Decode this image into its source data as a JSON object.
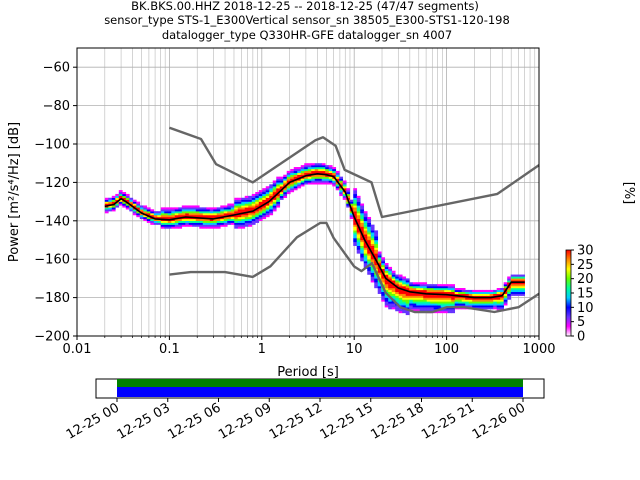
{
  "header": {
    "line1": "BK.BKS.00.HHZ   2018-12-25 -- 2018-12-25  (47/47 segments)",
    "line2": "sensor_type STS-1_E300Vertical sensor_sn 38505_E300-STS1-120-198",
    "line3": "datalogger_type Q330HR-GFE datalogger_sn 4007"
  },
  "chart_data": [
    {
      "type": "heatmap",
      "title": "",
      "xlabel": "Period [s]",
      "ylabel": "Power [m²/s⁴/Hz] [dB]",
      "xscale": "log",
      "xlim": [
        0.01,
        1000
      ],
      "ylim": [
        -200,
        -50
      ],
      "x_ticks": [
        0.01,
        0.1,
        1,
        10,
        100,
        1000
      ],
      "x_tick_labels": [
        "0.01",
        "0.1",
        "1",
        "10",
        "100",
        "1000"
      ],
      "y_ticks": [
        -200,
        -180,
        -160,
        -140,
        -120,
        -100,
        -80,
        -60
      ],
      "y_tick_labels": [
        "−200",
        "−180",
        "−160",
        "−140",
        "−120",
        "−100",
        "−80",
        "−60"
      ],
      "grid": true,
      "colorbar": {
        "label": "[%]",
        "min": 0,
        "max": 30,
        "ticks": [
          0,
          5,
          10,
          15,
          20,
          25,
          30
        ],
        "tick_labels": [
          "0",
          "5",
          "10",
          "15",
          "20",
          "25",
          "30"
        ],
        "colors": [
          "#ffffff",
          "#ff00ff",
          "#6633ff",
          "#0000ff",
          "#00ccff",
          "#00ff99",
          "#66ff00",
          "#ffff00",
          "#ff8800",
          "#ff0000"
        ]
      },
      "series": [
        {
          "role": "noise-model-high",
          "color": "#666666",
          "x": [
            0.1,
            0.22,
            0.32,
            0.8,
            3.8,
            4.6,
            6.3,
            7.9,
            15.4,
            20,
            354.8,
            1000
          ],
          "y": [
            -91.5,
            -97.4,
            -110.5,
            -120,
            -98,
            -96.5,
            -101,
            -113.5,
            -120,
            -138,
            -126,
            -111
          ]
        },
        {
          "role": "noise-model-low",
          "color": "#666666",
          "x": [
            0.1,
            0.17,
            0.4,
            0.8,
            1.24,
            2.4,
            4.3,
            5,
            6,
            10,
            12,
            15.6,
            21.9,
            31.6,
            45,
            70,
            101,
            154,
            328,
            600,
            1000
          ],
          "y": [
            -168,
            -166.7,
            -166.7,
            -169.2,
            -163.7,
            -148.6,
            -141.1,
            -141.1,
            -149,
            -163.8,
            -166.2,
            -162.1,
            -177.5,
            -185,
            -187.5,
            -187.5,
            -185,
            -185,
            -187.5,
            -185,
            -178
          ]
        },
        {
          "role": "mode",
          "color": "#000000",
          "x": [
            0.02,
            0.025,
            0.03,
            0.035,
            0.05,
            0.07,
            0.1,
            0.15,
            0.3,
            0.5,
            0.8,
            1.2,
            2,
            3,
            4,
            5,
            6,
            8,
            10,
            13,
            17,
            22,
            30,
            40,
            60,
            100,
            200,
            300,
            400,
            500,
            700
          ],
          "y": [
            -132.5,
            -131.5,
            -128.5,
            -130.5,
            -136,
            -139,
            -139.5,
            -138,
            -139,
            -137,
            -135,
            -130,
            -120,
            -116.5,
            -115.5,
            -116,
            -117,
            -125,
            -138,
            -150,
            -160,
            -170,
            -175,
            -177,
            -178,
            -178.5,
            -180,
            -180,
            -179,
            -172,
            -172
          ]
        }
      ]
    },
    {
      "type": "timeline",
      "x_tick_labels": [
        "12-25 00",
        "12-25 03",
        "12-25 06",
        "12-25 09",
        "12-25 12",
        "12-25 15",
        "12-25 18",
        "12-25 21",
        "12-26 00"
      ],
      "bars": [
        {
          "role": "segments",
          "color": "#008000",
          "start": "12-25 00",
          "end": "12-26 00"
        },
        {
          "role": "data-coverage",
          "color": "#0000ff",
          "start": "12-25 00",
          "end": "12-26 00"
        }
      ]
    }
  ]
}
